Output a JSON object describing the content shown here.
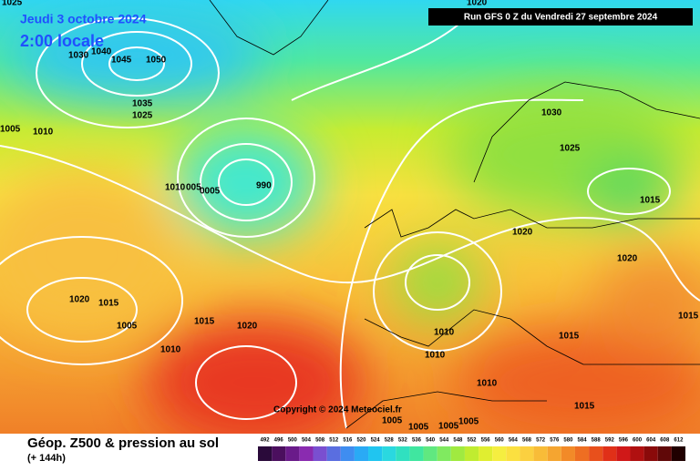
{
  "header": {
    "valid_date": "Jeudi 3 octobre 2024",
    "local_time": "2:00 locale",
    "run": "Run GFS 0 Z du Vendredi 27 septembre 2024"
  },
  "isobar_labels": [
    "1025",
    "1030",
    "1040",
    "1045",
    "1050",
    "1035",
    "1025",
    "1010",
    "1005",
    "1010",
    "005",
    "0005",
    "990",
    "1020",
    "1030",
    "1025",
    "1015",
    "1020",
    "1020",
    "1015",
    "1020",
    "1015",
    "1005",
    "1015",
    "1020",
    "1010",
    "1010",
    "1010",
    "1010",
    "1015",
    "1015",
    "1005",
    "1005",
    "1005",
    "1005"
  ],
  "copyright": "Copyright © 2024 Meteociel.fr",
  "legend": {
    "title": "Géop. Z500 & pression au sol",
    "lead_time": "(+ 144h)",
    "ticks": [
      492,
      496,
      500,
      504,
      508,
      512,
      516,
      520,
      524,
      528,
      532,
      536,
      540,
      544,
      548,
      552,
      556,
      560,
      564,
      568,
      572,
      576,
      580,
      584,
      588,
      592,
      596,
      600,
      604,
      608,
      612
    ],
    "colors": [
      "#2a0a3a",
      "#4b0f5e",
      "#6a1b8a",
      "#8a2bb0",
      "#7a4fd0",
      "#5a6ee0",
      "#3f8df0",
      "#2aaaf5",
      "#20c5f0",
      "#2ad8e0",
      "#30e0c0",
      "#40e6a0",
      "#60e880",
      "#80ea60",
      "#a0ea40",
      "#c0ec30",
      "#e0ee30",
      "#f5ee40",
      "#fbe040",
      "#fbd040",
      "#f8bc38",
      "#f5a530",
      "#f28a28",
      "#ee6e22",
      "#e8501c",
      "#e03018",
      "#d01818",
      "#b01010",
      "#8a0a0a",
      "#600808",
      "#200000"
    ]
  }
}
